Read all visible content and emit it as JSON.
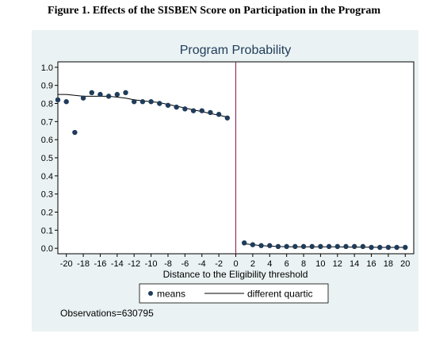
{
  "figure": {
    "caption": "Figure 1. Effects of the SISBEN Score on Participation in the Program"
  },
  "chart_data": {
    "type": "scatter",
    "title": "Program Probability",
    "xlabel": "Distance to the Eligibility threshold",
    "ylabel": "",
    "xlim": [
      -21,
      21
    ],
    "ylim": [
      -0.03,
      1.03
    ],
    "x_ticks": [
      -20,
      -18,
      -16,
      -14,
      -12,
      -10,
      -8,
      -6,
      -4,
      -2,
      0,
      2,
      4,
      6,
      8,
      10,
      12,
      14,
      16,
      18,
      20
    ],
    "x_tick_labels": [
      "-20",
      "-18",
      "-16",
      "-14",
      "-12",
      "-10",
      "-8",
      "-6",
      "-4",
      "-2",
      "0",
      "2",
      "4",
      "6",
      "8",
      "10",
      "12",
      "14",
      "16",
      "18",
      "20"
    ],
    "y_ticks": [
      0.0,
      0.1,
      0.2,
      0.3,
      0.4,
      0.5,
      0.6,
      0.7,
      0.8,
      0.9,
      1.0
    ],
    "y_tick_labels": [
      "0.0",
      "0.1",
      "0.2",
      "0.3",
      "0.4",
      "0.5",
      "0.6",
      "0.7",
      "0.8",
      "0.9",
      "1.0"
    ],
    "threshold_x": 0,
    "grid": false,
    "legend_position": "bottom",
    "series": [
      {
        "name": "means",
        "kind": "markers",
        "color": "#1f3c5a",
        "points": [
          [
            -21,
            0.82
          ],
          [
            -20,
            0.81
          ],
          [
            -19,
            0.64
          ],
          [
            -18,
            0.83
          ],
          [
            -17,
            0.86
          ],
          [
            -16,
            0.85
          ],
          [
            -15,
            0.84
          ],
          [
            -14,
            0.85
          ],
          [
            -13,
            0.86
          ],
          [
            -12,
            0.81
          ],
          [
            -11,
            0.81
          ],
          [
            -10,
            0.81
          ],
          [
            -9,
            0.8
          ],
          [
            -8,
            0.79
          ],
          [
            -7,
            0.78
          ],
          [
            -6,
            0.77
          ],
          [
            -5,
            0.76
          ],
          [
            -4,
            0.76
          ],
          [
            -3,
            0.75
          ],
          [
            -2,
            0.74
          ],
          [
            -1,
            0.72
          ],
          [
            1,
            0.03
          ],
          [
            2,
            0.02
          ],
          [
            3,
            0.015
          ],
          [
            4,
            0.015
          ],
          [
            5,
            0.01
          ],
          [
            6,
            0.01
          ],
          [
            7,
            0.01
          ],
          [
            8,
            0.01
          ],
          [
            9,
            0.01
          ],
          [
            10,
            0.01
          ],
          [
            11,
            0.01
          ],
          [
            12,
            0.01
          ],
          [
            13,
            0.01
          ],
          [
            14,
            0.01
          ],
          [
            15,
            0.01
          ],
          [
            16,
            0.005
          ],
          [
            17,
            0.005
          ],
          [
            18,
            0.005
          ],
          [
            19,
            0.005
          ],
          [
            20,
            0.005
          ]
        ]
      },
      {
        "name": "different quartic",
        "kind": "line",
        "color": "#000000",
        "points": [
          [
            -21,
            0.85
          ],
          [
            -20,
            0.85
          ],
          [
            -19,
            0.845
          ],
          [
            -18,
            0.84
          ],
          [
            -17,
            0.84
          ],
          [
            -16,
            0.84
          ],
          [
            -15,
            0.84
          ],
          [
            -14,
            0.835
          ],
          [
            -13,
            0.83
          ],
          [
            -12,
            0.82
          ],
          [
            -11,
            0.815
          ],
          [
            -10,
            0.81
          ],
          [
            -9,
            0.805
          ],
          [
            -8,
            0.795
          ],
          [
            -7,
            0.785
          ],
          [
            -6,
            0.775
          ],
          [
            -5,
            0.765
          ],
          [
            -4,
            0.755
          ],
          [
            -3,
            0.745
          ],
          [
            -2,
            0.735
          ],
          [
            -1,
            0.725
          ],
          [
            1,
            0.025
          ],
          [
            2,
            0.02
          ],
          [
            3,
            0.015
          ],
          [
            4,
            0.012
          ],
          [
            5,
            0.01
          ],
          [
            6,
            0.009
          ],
          [
            7,
            0.008
          ],
          [
            8,
            0.008
          ],
          [
            9,
            0.008
          ],
          [
            10,
            0.008
          ],
          [
            11,
            0.008
          ],
          [
            12,
            0.008
          ],
          [
            13,
            0.007
          ],
          [
            14,
            0.007
          ],
          [
            15,
            0.006
          ],
          [
            16,
            0.006
          ],
          [
            17,
            0.005
          ],
          [
            18,
            0.005
          ],
          [
            19,
            0.005
          ],
          [
            20,
            0.005
          ]
        ]
      }
    ],
    "legend": {
      "means_label": "means",
      "line_label": "different quartic"
    },
    "note": "Observations=630795",
    "colors": {
      "panel_background": "#eaf2f3",
      "plot_background": "#ffffff",
      "marker": "#1f3c5a",
      "fit_line": "#000000",
      "threshold_line": "#8b1a4a"
    }
  }
}
